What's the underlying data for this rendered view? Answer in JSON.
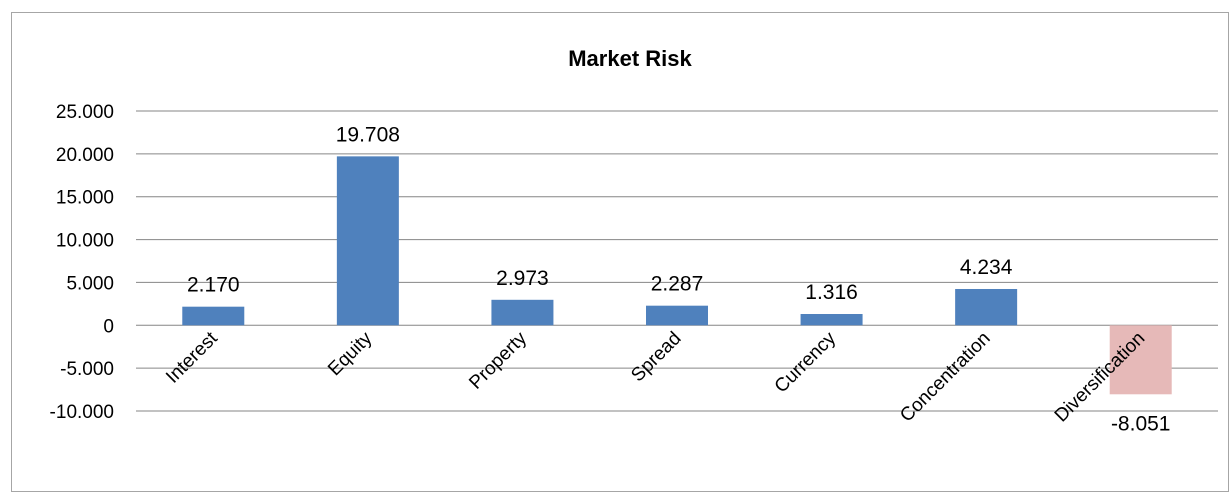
{
  "chart_data": {
    "type": "bar",
    "title": "Market Risk",
    "categories": [
      "Interest",
      "Equity",
      "Property",
      "Spread",
      "Currency",
      "Concentration",
      "Diversification"
    ],
    "values": [
      2170,
      19708,
      2973,
      2287,
      1316,
      4234,
      -8051
    ],
    "data_labels": [
      "2.170",
      "19.708",
      "2.973",
      "2.287",
      "1.316",
      "4.234",
      "-8.051"
    ],
    "ytick_values": [
      25000,
      20000,
      15000,
      10000,
      5000,
      0,
      -5000,
      -10000
    ],
    "ytick_labels": [
      "25.000",
      "20.000",
      "15.000",
      "10.000",
      "5.000",
      "0",
      "-5.000",
      "-10.000"
    ],
    "ylim": [
      -10000,
      25000
    ],
    "grid": true,
    "legend": "none",
    "colors": {
      "positive_bar": "#4f81bd",
      "negative_bar": "#e6b9b8",
      "gridline": "#868686",
      "frame": "#a6a6a6"
    }
  }
}
